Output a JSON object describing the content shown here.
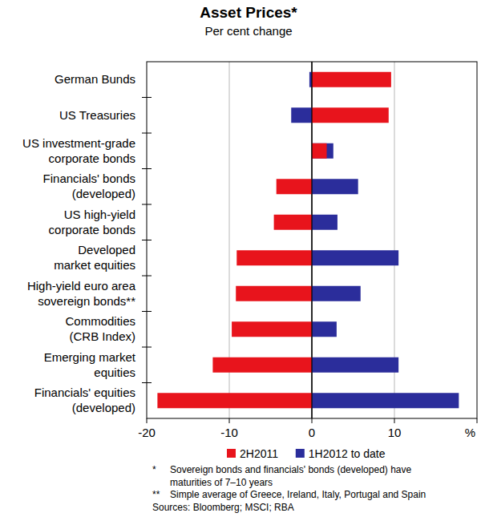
{
  "chart_data": {
    "type": "bar",
    "orientation": "horizontal",
    "title": "Asset Prices*",
    "subtitle": "Per cent change",
    "categories": [
      "German Bunds",
      "US Treasuries",
      "US investment-grade\ncorporate bonds",
      "Financials' bonds\n(developed)",
      "US high-yield\ncorporate bonds",
      "Developed\nmarket equities",
      "High-yield euro area\nsovereign bonds**",
      "Commodities\n(CRB Index)",
      "Emerging market\nequities",
      "Financials' equities\n(developed)"
    ],
    "series": [
      {
        "name": "2H2011",
        "color": "#e8141c",
        "values": [
          9.6,
          9.3,
          1.8,
          -4.3,
          -4.6,
          -9.1,
          -9.2,
          -9.7,
          -12.0,
          -18.7
        ]
      },
      {
        "name": "1H2012 to date",
        "color": "#2b2d9b",
        "values": [
          -0.3,
          -2.5,
          2.6,
          5.6,
          3.1,
          10.5,
          5.9,
          3.0,
          10.5,
          17.8
        ]
      }
    ],
    "xlim": [
      -20,
      20
    ],
    "xticks": [
      -20,
      -10,
      0,
      10,
      {
        "value": 20,
        "label": "%"
      }
    ],
    "grid": true,
    "legend": "bottom",
    "notes": [
      {
        "marker": "*",
        "lines": [
          "Sovereign bonds and financials' bonds (developed) have",
          "maturities of 7–10 years"
        ]
      },
      {
        "marker": "**",
        "lines": [
          "Simple average of Greece, Ireland, Italy, Portugal and Spain"
        ]
      }
    ],
    "source": "Sources: Bloomberg; MSCI; RBA"
  }
}
